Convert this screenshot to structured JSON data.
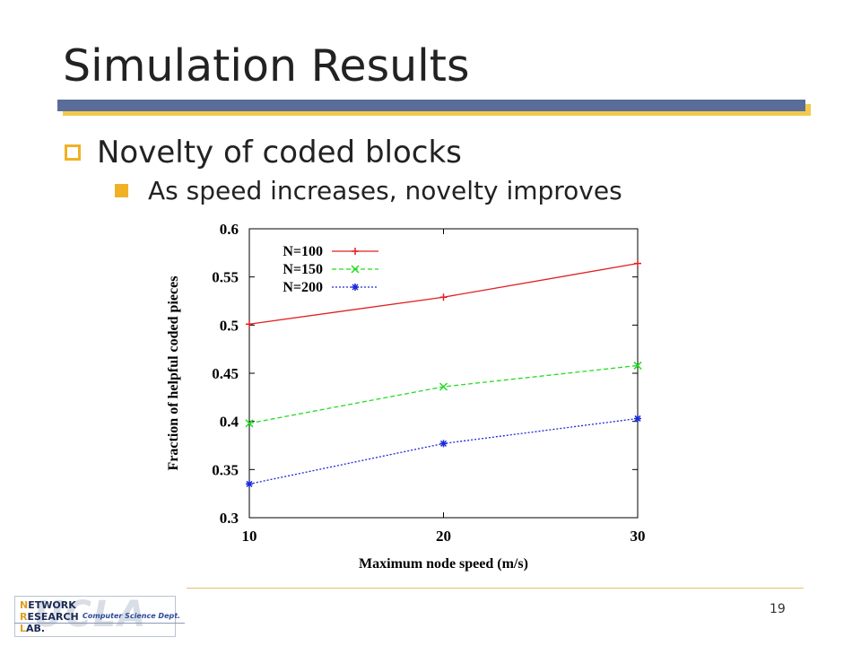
{
  "slide": {
    "title": "Simulation Results",
    "bullet1": "Novelty of coded blocks",
    "bullet2": "As speed increases, novelty improves",
    "page_number": "19"
  },
  "logo": {
    "line1_cap": "N",
    "line1_rest": "ETWORK",
    "line2_cap": "R",
    "line2_rest": "ESEARCH",
    "line3_cap": "L",
    "line3_rest": "AB.",
    "dept": "Computer Science Dept.",
    "bg_text": "UCLA"
  },
  "chart_data": {
    "type": "line",
    "title": "",
    "xlabel": "Maximum node speed (m/s)",
    "ylabel": "Fraction of helpful coded pieces",
    "x": [
      10,
      20,
      30
    ],
    "xlim": [
      10,
      30
    ],
    "ylim": [
      0.3,
      0.6
    ],
    "xticks": [
      "10",
      "20",
      "30"
    ],
    "yticks": [
      "0.3",
      "0.35",
      "0.4",
      "0.45",
      "0.5",
      "0.55",
      "0.6"
    ],
    "legend_position": "top-left",
    "grid": false,
    "series": [
      {
        "name": "N=100",
        "values": [
          0.501,
          0.529,
          0.564
        ],
        "color": "#e02020",
        "dash": "solid",
        "marker": "plus"
      },
      {
        "name": "N=150",
        "values": [
          0.398,
          0.436,
          0.458
        ],
        "color": "#22dd22",
        "dash": "dashed",
        "marker": "x"
      },
      {
        "name": "N=200",
        "values": [
          0.335,
          0.377,
          0.403
        ],
        "color": "#1a2ad8",
        "dash": "dotted",
        "marker": "star"
      }
    ]
  }
}
